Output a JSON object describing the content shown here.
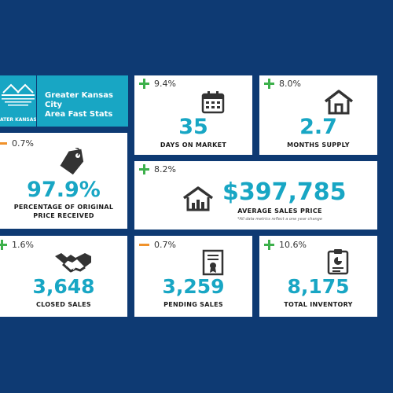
{
  "header": {
    "logo_label": "ATER KANSAS CITY",
    "title_line1": "Greater Kansas City",
    "title_line2": "Area Fast Stats"
  },
  "colors": {
    "background": "#0e3a73",
    "accent": "#18a6c4",
    "increase": "#3db04b",
    "decrease": "#f0922b"
  },
  "stats": {
    "days_on_market": {
      "change": "9.4%",
      "direction": "up",
      "value": "35",
      "label": "DAYS ON MARKET",
      "icon": "calendar-icon"
    },
    "months_supply": {
      "change": "8.0%",
      "direction": "up",
      "value": "2.7",
      "label": "MONTHS SUPPLY",
      "icon": "house-icon"
    },
    "pct_original_price": {
      "change": "0.7%",
      "direction": "down",
      "value": "97.9%",
      "label_line1": "PERCENTAGE OF ORIGINAL",
      "label_line2": "PRICE RECEIVED",
      "icon": "price-tag-icon"
    },
    "avg_sales_price": {
      "change": "8.2%",
      "direction": "up",
      "value": "$397,785",
      "label": "AVERAGE SALES PRICE",
      "note": "*All data metrics reflect a one year change",
      "icon": "house-chart-icon"
    },
    "closed_sales": {
      "change": "1.6%",
      "direction": "up",
      "value": "3,648",
      "label": "CLOSED SALES",
      "icon": "handshake-icon"
    },
    "pending_sales": {
      "change": "0.7%",
      "direction": "down",
      "value": "3,259",
      "label": "PENDING SALES",
      "icon": "certificate-icon"
    },
    "total_inventory": {
      "change": "10.6%",
      "direction": "up",
      "value": "8,175",
      "label": "TOTAL INVENTORY",
      "icon": "clipboard-chart-icon"
    }
  }
}
